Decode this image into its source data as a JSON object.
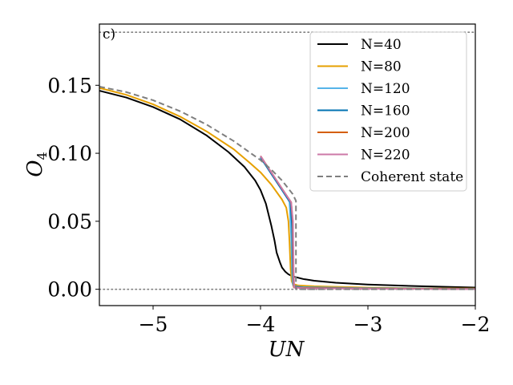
{
  "chart_data": {
    "type": "line",
    "panel_label": "c)",
    "xlabel": "UN",
    "ylabel": "O",
    "ylabel_subscript": "4",
    "xlim": [
      -5.5,
      -2.0
    ],
    "ylim": [
      -0.012,
      0.195
    ],
    "xticks": [
      {
        "value": -5,
        "label": "−5"
      },
      {
        "value": -4,
        "label": "−4"
      },
      {
        "value": -3,
        "label": "−3"
      },
      {
        "value": -2,
        "label": "−2"
      }
    ],
    "yticks": [
      {
        "value": 0.0,
        "label": "0.00"
      },
      {
        "value": 0.05,
        "label": "0.05"
      },
      {
        "value": 0.1,
        "label": "0.10"
      },
      {
        "value": 0.15,
        "label": "0.15"
      }
    ],
    "reference_lines": [
      {
        "y": 0.189,
        "style": "dotted",
        "color": "#808080"
      },
      {
        "y": 0.0,
        "style": "dotted",
        "color": "#808080"
      }
    ],
    "legend_position": "top-right",
    "series": [
      {
        "name": "N=40",
        "color": "#000000",
        "dash": "solid",
        "x": [
          -5.5,
          -5.25,
          -5.0,
          -4.75,
          -4.5,
          -4.3,
          -4.15,
          -4.05,
          -4.0,
          -3.95,
          -3.9,
          -3.87,
          -3.85,
          -3.82,
          -3.8,
          -3.77,
          -3.74,
          -3.7,
          -3.6,
          -3.5,
          -3.3,
          -3.0,
          -2.5,
          -2.0
        ],
        "y": [
          0.146,
          0.141,
          0.134,
          0.125,
          0.113,
          0.101,
          0.09,
          0.08,
          0.073,
          0.063,
          0.047,
          0.036,
          0.027,
          0.02,
          0.016,
          0.013,
          0.011,
          0.0095,
          0.0075,
          0.0063,
          0.0048,
          0.0035,
          0.0022,
          0.0013
        ]
      },
      {
        "name": "N=80",
        "color": "#E6A000",
        "dash": "solid",
        "x": [
          -5.5,
          -5.25,
          -5.0,
          -4.75,
          -4.5,
          -4.25,
          -4.1,
          -4.0,
          -3.9,
          -3.8,
          -3.76,
          -3.74,
          -3.73,
          -3.72,
          -3.71,
          -3.7,
          -3.65,
          -3.5,
          -3.0,
          -2.5,
          -2.0
        ],
        "y": [
          0.148,
          0.143,
          0.136,
          0.127,
          0.116,
          0.103,
          0.093,
          0.086,
          0.077,
          0.066,
          0.06,
          0.05,
          0.035,
          0.015,
          0.006,
          0.004,
          0.0028,
          0.0022,
          0.0012,
          0.0007,
          0.0005
        ]
      },
      {
        "name": "N=120",
        "color": "#56B4E9",
        "dash": "solid",
        "x": [
          -4.0,
          -3.95,
          -3.9,
          -3.85,
          -3.8,
          -3.75,
          -3.73,
          -3.715,
          -3.705,
          -3.7,
          -3.695,
          -3.6,
          -3.0,
          -2.0
        ],
        "y": [
          0.097,
          0.091,
          0.085,
          0.079,
          0.073,
          0.067,
          0.064,
          0.04,
          0.012,
          0.004,
          0.0025,
          0.0015,
          0.0008,
          0.0003
        ]
      },
      {
        "name": "N=160",
        "color": "#0072B2",
        "dash": "solid",
        "x": [
          -4.0,
          -3.95,
          -3.9,
          -3.85,
          -3.8,
          -3.75,
          -3.72,
          -3.705,
          -3.698,
          -3.69,
          -3.6,
          -3.0,
          -2.0
        ],
        "y": [
          0.097,
          0.091,
          0.085,
          0.079,
          0.073,
          0.067,
          0.064,
          0.045,
          0.012,
          0.002,
          0.0012,
          0.0006,
          0.0002
        ]
      },
      {
        "name": "N=200",
        "color": "#D55E00",
        "dash": "solid",
        "x": [
          -4.0,
          -3.95,
          -3.9,
          -3.85,
          -3.8,
          -3.75,
          -3.715,
          -3.7,
          -3.695,
          -3.69,
          -3.6,
          -3.0,
          -2.0
        ],
        "y": [
          0.098,
          0.092,
          0.086,
          0.08,
          0.074,
          0.068,
          0.064,
          0.05,
          0.015,
          0.0015,
          0.001,
          0.0005,
          0.0002
        ]
      },
      {
        "name": "N=220",
        "color": "#CC79A7",
        "dash": "solid",
        "x": [
          -4.0,
          -3.95,
          -3.9,
          -3.85,
          -3.8,
          -3.75,
          -3.715,
          -3.698,
          -3.692,
          -3.686,
          -3.6,
          -3.0,
          -2.0
        ],
        "y": [
          0.098,
          0.092,
          0.086,
          0.08,
          0.074,
          0.068,
          0.064,
          0.05,
          0.015,
          0.0012,
          0.0008,
          0.0004,
          0.0001
        ]
      },
      {
        "name": "Coherent state",
        "color": "#7f7f7f",
        "dash": "dashed",
        "x": [
          -5.5,
          -5.25,
          -5.0,
          -4.75,
          -4.5,
          -4.25,
          -4.0,
          -3.9,
          -3.8,
          -3.7,
          -3.67,
          -3.67,
          -3.6,
          -3.0,
          -2.0
        ],
        "y": [
          0.149,
          0.145,
          0.139,
          0.131,
          0.121,
          0.109,
          0.095,
          0.088,
          0.08,
          0.07,
          0.065,
          0.0,
          0.0,
          0.0,
          0.0
        ]
      }
    ]
  }
}
